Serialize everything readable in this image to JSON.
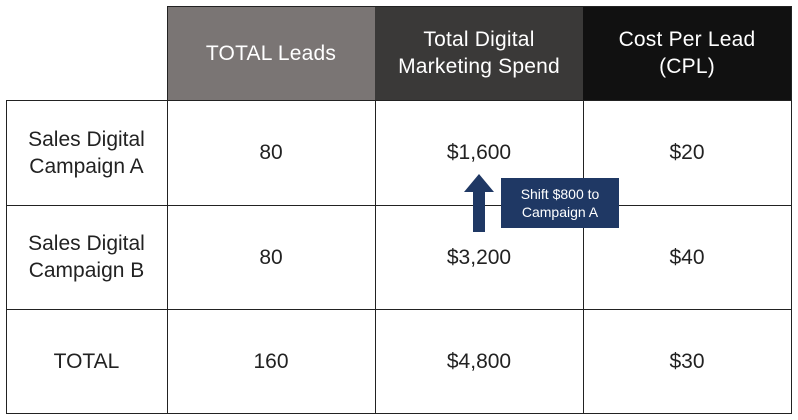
{
  "chart_data": {
    "type": "table",
    "columns": [
      "",
      "TOTAL Leads",
      "Total Digital\nMarketing Spend",
      "Cost Per Lead\n(CPL)"
    ],
    "rows": [
      {
        "label": "Sales Digital\nCampaign A",
        "leads": "80",
        "spend": "$1,600",
        "cpl": "$20"
      },
      {
        "label": "Sales Digital\nCampaign B",
        "leads": "80",
        "spend": "$3,200",
        "cpl": "$40"
      },
      {
        "label": "TOTAL",
        "leads": "160",
        "spend": "$4,800",
        "cpl": "$30"
      }
    ],
    "annotation": "Shift $800 to\nCampaign A"
  },
  "colors": {
    "header_leads": "#7a7574",
    "header_spend": "#3a3938",
    "header_cpl": "#111111",
    "annotation_bg": "#1f3864"
  }
}
